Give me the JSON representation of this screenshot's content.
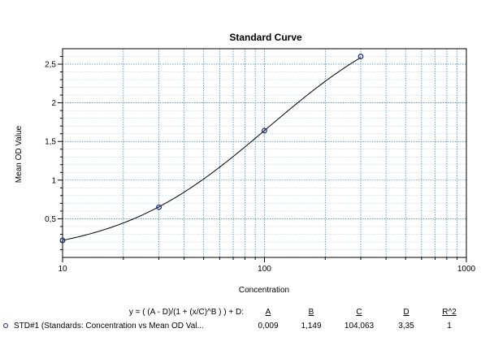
{
  "chart_data": {
    "type": "line",
    "title": "Standard Curve",
    "xlabel": "Concentration",
    "ylabel": "Mean OD Value",
    "x_scale": "log",
    "xlim": [
      10,
      1000
    ],
    "ylim": [
      0,
      2.7
    ],
    "grid": true,
    "x_ticks": [
      "10",
      "100",
      "1000"
    ],
    "y_ticks": [
      {
        "value": 0.5,
        "label": "0,5"
      },
      {
        "value": 1,
        "label": "1"
      },
      {
        "value": 1.5,
        "label": "1,5"
      },
      {
        "value": 2,
        "label": "2"
      },
      {
        "value": 2.5,
        "label": "2,5"
      }
    ],
    "series": [
      {
        "name": "STD#1 (Standards: Concentration vs Mean OD Val...",
        "points": [
          {
            "x": 10,
            "y": 0.22
          },
          {
            "x": 30,
            "y": 0.65
          },
          {
            "x": 100,
            "y": 1.64
          },
          {
            "x": 300,
            "y": 2.6
          }
        ]
      }
    ],
    "fit": {
      "equation": "y = ( (A - D)/(1 + (x/C)^B ) ) + D:",
      "A": 0.009,
      "B": 1.149,
      "C": 104.063,
      "D": 3.35,
      "headers": [
        "A",
        "B",
        "C",
        "D",
        "R^2"
      ],
      "values": [
        "0,009",
        "1,149",
        "104,063",
        "3,35",
        "1"
      ]
    },
    "colors": {
      "line": "#000000",
      "grid": "#2a7fa8",
      "marker": "#1a237e"
    }
  }
}
